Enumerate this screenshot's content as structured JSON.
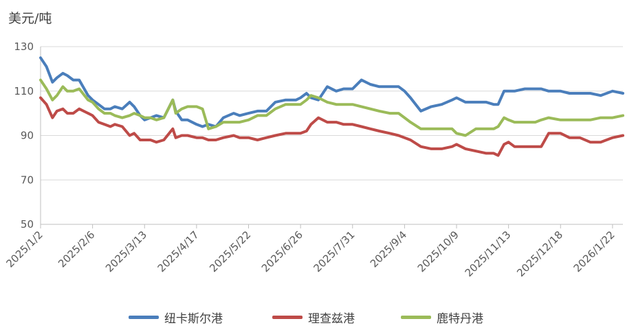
{
  "chart_data": {
    "type": "line",
    "ylabel": "美元/吨",
    "ylim": [
      50,
      130
    ],
    "yticks": [
      50,
      70,
      90,
      110,
      130
    ],
    "xlim": [
      "2025-01-02",
      "2026-01-29"
    ],
    "xtick_labels": [
      "2025/1/2",
      "2025/2/6",
      "2025/3/13",
      "2025/4/17",
      "2025/5/22",
      "2025/6/26",
      "2025/7/31",
      "2025/9/4",
      "2025/10/9",
      "2025/11/13",
      "2025/12/18",
      "2026/1/22"
    ],
    "xtick_dates": [
      "2025-01-02",
      "2025-02-06",
      "2025-03-13",
      "2025-04-17",
      "2025-05-22",
      "2025-06-26",
      "2025-07-31",
      "2025-09-04",
      "2025-10-09",
      "2025-11-13",
      "2025-12-18",
      "2026-01-22"
    ],
    "grid": "horizontal",
    "legend_position": "bottom",
    "series": [
      {
        "name": "纽卡斯尔港",
        "color": "#4a7ebb",
        "x": [
          "2025-01-02",
          "2025-01-06",
          "2025-01-10",
          "2025-01-13",
          "2025-01-17",
          "2025-01-20",
          "2025-01-24",
          "2025-01-28",
          "2025-02-03",
          "2025-02-06",
          "2025-02-10",
          "2025-02-14",
          "2025-02-18",
          "2025-02-21",
          "2025-02-26",
          "2025-03-03",
          "2025-03-06",
          "2025-03-10",
          "2025-03-13",
          "2025-03-17",
          "2025-03-21",
          "2025-03-26",
          "2025-04-01",
          "2025-04-03",
          "2025-04-07",
          "2025-04-11",
          "2025-04-17",
          "2025-04-21",
          "2025-04-25",
          "2025-04-30",
          "2025-05-05",
          "2025-05-12",
          "2025-05-16",
          "2025-05-22",
          "2025-05-28",
          "2025-06-03",
          "2025-06-09",
          "2025-06-16",
          "2025-06-23",
          "2025-06-26",
          "2025-06-30",
          "2025-07-03",
          "2025-07-08",
          "2025-07-14",
          "2025-07-20",
          "2025-07-25",
          "2025-07-31",
          "2025-08-06",
          "2025-08-12",
          "2025-08-18",
          "2025-08-25",
          "2025-08-31",
          "2025-09-04",
          "2025-09-08",
          "2025-09-15",
          "2025-09-22",
          "2025-09-29",
          "2025-10-06",
          "2025-10-09",
          "2025-10-15",
          "2025-10-22",
          "2025-10-29",
          "2025-11-03",
          "2025-11-06",
          "2025-11-10",
          "2025-11-13",
          "2025-11-17",
          "2025-11-24",
          "2025-12-01",
          "2025-12-05",
          "2025-12-10",
          "2025-12-18",
          "2025-12-24",
          "2025-12-31",
          "2026-01-07",
          "2026-01-14",
          "2026-01-22",
          "2026-01-29"
        ],
        "values": [
          125,
          121,
          114,
          116,
          118,
          117,
          115,
          115,
          108,
          106,
          104,
          102,
          102,
          103,
          102,
          105,
          103,
          99,
          97,
          98,
          99,
          98,
          106,
          101,
          97,
          97,
          95,
          94,
          95,
          94,
          98,
          100,
          99,
          100,
          101,
          101,
          105,
          106,
          106,
          107,
          109,
          107,
          106,
          112,
          110,
          111,
          111,
          115,
          113,
          112,
          112,
          112,
          110,
          107,
          101,
          103,
          104,
          106,
          107,
          105,
          105,
          105,
          104,
          104,
          110,
          110,
          110,
          111,
          111,
          111,
          110,
          110,
          109,
          109,
          109,
          108,
          110,
          109
        ]
      },
      {
        "name": "理查兹港",
        "color": "#be4b48",
        "x": [
          "2025-01-02",
          "2025-01-06",
          "2025-01-10",
          "2025-01-13",
          "2025-01-17",
          "2025-01-20",
          "2025-01-24",
          "2025-01-28",
          "2025-02-03",
          "2025-02-06",
          "2025-02-10",
          "2025-02-14",
          "2025-02-18",
          "2025-02-21",
          "2025-02-26",
          "2025-03-03",
          "2025-03-06",
          "2025-03-10",
          "2025-03-13",
          "2025-03-17",
          "2025-03-21",
          "2025-03-26",
          "2025-04-01",
          "2025-04-03",
          "2025-04-07",
          "2025-04-11",
          "2025-04-17",
          "2025-04-21",
          "2025-04-25",
          "2025-04-30",
          "2025-05-05",
          "2025-05-12",
          "2025-05-16",
          "2025-05-22",
          "2025-05-28",
          "2025-06-03",
          "2025-06-09",
          "2025-06-16",
          "2025-06-23",
          "2025-06-26",
          "2025-06-30",
          "2025-07-03",
          "2025-07-08",
          "2025-07-14",
          "2025-07-20",
          "2025-07-25",
          "2025-07-31",
          "2025-08-06",
          "2025-08-12",
          "2025-08-18",
          "2025-08-25",
          "2025-08-31",
          "2025-09-04",
          "2025-09-08",
          "2025-09-15",
          "2025-09-22",
          "2025-09-29",
          "2025-10-06",
          "2025-10-09",
          "2025-10-15",
          "2025-10-22",
          "2025-10-29",
          "2025-11-03",
          "2025-11-06",
          "2025-11-10",
          "2025-11-13",
          "2025-11-17",
          "2025-11-24",
          "2025-12-01",
          "2025-12-05",
          "2025-12-10",
          "2025-12-18",
          "2025-12-24",
          "2025-12-31",
          "2026-01-07",
          "2026-01-14",
          "2026-01-22",
          "2026-01-29"
        ],
        "values": [
          107,
          104,
          98,
          101,
          102,
          100,
          100,
          102,
          100,
          99,
          96,
          95,
          94,
          95,
          94,
          90,
          91,
          88,
          88,
          88,
          87,
          88,
          93,
          89,
          90,
          90,
          89,
          89,
          88,
          88,
          89,
          90,
          89,
          89,
          88,
          89,
          90,
          91,
          91,
          91,
          92,
          95,
          98,
          96,
          96,
          95,
          95,
          94,
          93,
          92,
          91,
          90,
          89,
          88,
          85,
          84,
          84,
          85,
          86,
          84,
          83,
          82,
          82,
          81,
          86,
          87,
          85,
          85,
          85,
          85,
          91,
          91,
          89,
          89,
          87,
          87,
          89,
          90
        ]
      },
      {
        "name": "鹿特丹港",
        "color": "#9bbb59",
        "x": [
          "2025-01-02",
          "2025-01-06",
          "2025-01-10",
          "2025-01-13",
          "2025-01-17",
          "2025-01-20",
          "2025-01-24",
          "2025-01-28",
          "2025-02-03",
          "2025-02-06",
          "2025-02-10",
          "2025-02-14",
          "2025-02-18",
          "2025-02-21",
          "2025-02-26",
          "2025-03-03",
          "2025-03-06",
          "2025-03-10",
          "2025-03-13",
          "2025-03-17",
          "2025-03-21",
          "2025-03-26",
          "2025-04-01",
          "2025-04-03",
          "2025-04-07",
          "2025-04-11",
          "2025-04-17",
          "2025-04-21",
          "2025-04-25",
          "2025-04-30",
          "2025-05-05",
          "2025-05-12",
          "2025-05-16",
          "2025-05-22",
          "2025-05-28",
          "2025-06-03",
          "2025-06-09",
          "2025-06-16",
          "2025-06-23",
          "2025-06-26",
          "2025-06-30",
          "2025-07-03",
          "2025-07-08",
          "2025-07-14",
          "2025-07-20",
          "2025-07-25",
          "2025-07-31",
          "2025-08-06",
          "2025-08-12",
          "2025-08-18",
          "2025-08-25",
          "2025-08-31",
          "2025-09-04",
          "2025-09-08",
          "2025-09-15",
          "2025-09-22",
          "2025-09-29",
          "2025-10-06",
          "2025-10-09",
          "2025-10-15",
          "2025-10-22",
          "2025-10-29",
          "2025-11-03",
          "2025-11-06",
          "2025-11-10",
          "2025-11-13",
          "2025-11-17",
          "2025-11-24",
          "2025-12-01",
          "2025-12-05",
          "2025-12-10",
          "2025-12-18",
          "2025-12-24",
          "2025-12-31",
          "2026-01-07",
          "2026-01-14",
          "2026-01-22",
          "2026-01-29"
        ],
        "values": [
          115,
          111,
          106,
          108,
          112,
          110,
          110,
          111,
          106,
          105,
          102,
          100,
          100,
          99,
          98,
          99,
          100,
          99,
          98,
          98,
          97,
          98,
          106,
          100,
          102,
          103,
          103,
          102,
          93,
          94,
          96,
          96,
          96,
          97,
          99,
          99,
          102,
          104,
          104,
          104,
          106,
          108,
          107,
          105,
          104,
          104,
          104,
          103,
          102,
          101,
          100,
          100,
          98,
          96,
          93,
          93,
          93,
          93,
          91,
          90,
          93,
          93,
          93,
          94,
          98,
          97,
          96,
          96,
          96,
          97,
          98,
          97,
          97,
          97,
          97,
          98,
          98,
          99
        ]
      }
    ]
  }
}
